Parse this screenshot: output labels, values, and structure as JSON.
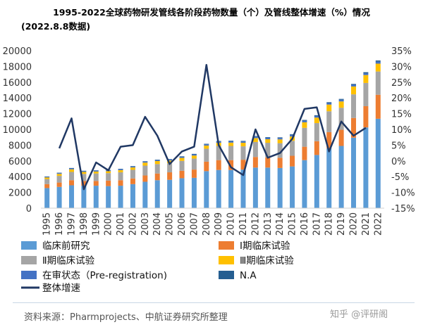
{
  "chart_data": {
    "type": "bar",
    "title": "1995-2022全球药物研发管线各阶段药物数量（个）及管线整体增速（%）情况",
    "subtitle": "(2022.8.8数据)",
    "categories": [
      "1995",
      "1996",
      "1997",
      "1998",
      "1999",
      "2000",
      "2001",
      "2002",
      "2003",
      "2004",
      "2005",
      "2006",
      "2007",
      "2008",
      "2009",
      "2010",
      "2011",
      "2012",
      "2013",
      "2014",
      "2015",
      "2016",
      "2017",
      "2018",
      "2019",
      "2020",
      "2021",
      "2022"
    ],
    "left_axis": {
      "range": [
        0,
        20000
      ],
      "ticks": [
        "0",
        "2000",
        "4000",
        "6000",
        "8000",
        "10000",
        "12000",
        "14000",
        "16000",
        "18000",
        "20000"
      ]
    },
    "right_axis": {
      "range": [
        -15,
        35
      ],
      "ticks": [
        "-15%",
        "-10%",
        "-5%",
        "0%",
        "5%",
        "10%",
        "15%",
        "20%",
        "25%",
        "30%",
        "35%"
      ]
    },
    "series": [
      {
        "name": "临床前研究",
        "color": "#5b9bd5",
        "values": [
          2550,
          2700,
          2900,
          2850,
          2850,
          2800,
          2850,
          3050,
          3350,
          3550,
          3600,
          3800,
          3850,
          4700,
          4850,
          4850,
          4900,
          5150,
          5150,
          5100,
          5300,
          6100,
          6750,
          7600,
          7900,
          8950,
          10250,
          11350
        ]
      },
      {
        "name": "Ⅰ期临床试验",
        "color": "#ed7d31",
        "values": [
          500,
          550,
          650,
          600,
          600,
          700,
          700,
          720,
          800,
          850,
          950,
          950,
          1050,
          1200,
          1250,
          1250,
          1250,
          1350,
          1300,
          1300,
          1350,
          1700,
          1750,
          2050,
          2050,
          2500,
          2700,
          3050
        ]
      },
      {
        "name": "Ⅱ期临床试验",
        "color": "#a5a5a5",
        "values": [
          650,
          850,
          1050,
          900,
          950,
          950,
          1000,
          1100,
          1250,
          1200,
          1150,
          1250,
          1400,
          1650,
          1800,
          1800,
          1700,
          1900,
          1850,
          1850,
          1900,
          2400,
          2300,
          2650,
          2800,
          3000,
          2950,
          2950
        ]
      },
      {
        "name": "Ⅲ期临床试验",
        "color": "#ffc000",
        "values": [
          200,
          250,
          330,
          250,
          250,
          250,
          280,
          300,
          380,
          380,
          350,
          380,
          380,
          400,
          400,
          420,
          450,
          500,
          450,
          480,
          550,
          700,
          700,
          850,
          800,
          1000,
          1000,
          1000
        ]
      },
      {
        "name": "在审状态（Pre-registration)",
        "color": "#4472c4",
        "values": [
          80,
          100,
          110,
          100,
          110,
          100,
          110,
          110,
          120,
          120,
          130,
          140,
          150,
          150,
          160,
          160,
          160,
          180,
          180,
          180,
          200,
          200,
          200,
          200,
          220,
          220,
          240,
          250
        ]
      },
      {
        "name": "N.A",
        "color": "#255e91",
        "values": [
          40,
          50,
          60,
          50,
          50,
          50,
          60,
          60,
          60,
          60,
          60,
          60,
          60,
          70,
          70,
          80,
          80,
          80,
          80,
          80,
          90,
          100,
          100,
          100,
          100,
          100,
          120,
          150
        ]
      }
    ],
    "line": {
      "name": "整体增速",
      "color": "#203864",
      "values": [
        null,
        4,
        13.5,
        -9,
        -0.5,
        -3,
        4.5,
        5,
        14,
        8,
        -1,
        3,
        4.5,
        30.5,
        5,
        -2,
        -4.5,
        10,
        1,
        2.5,
        7,
        16.5,
        17,
        3,
        12.5,
        8,
        10.5,
        null
      ]
    },
    "legend": "bottom",
    "grid": false
  },
  "source": "资料来源：Pharmprojects、中航证券研究所整理",
  "watermark": "知乎 @评研阁"
}
